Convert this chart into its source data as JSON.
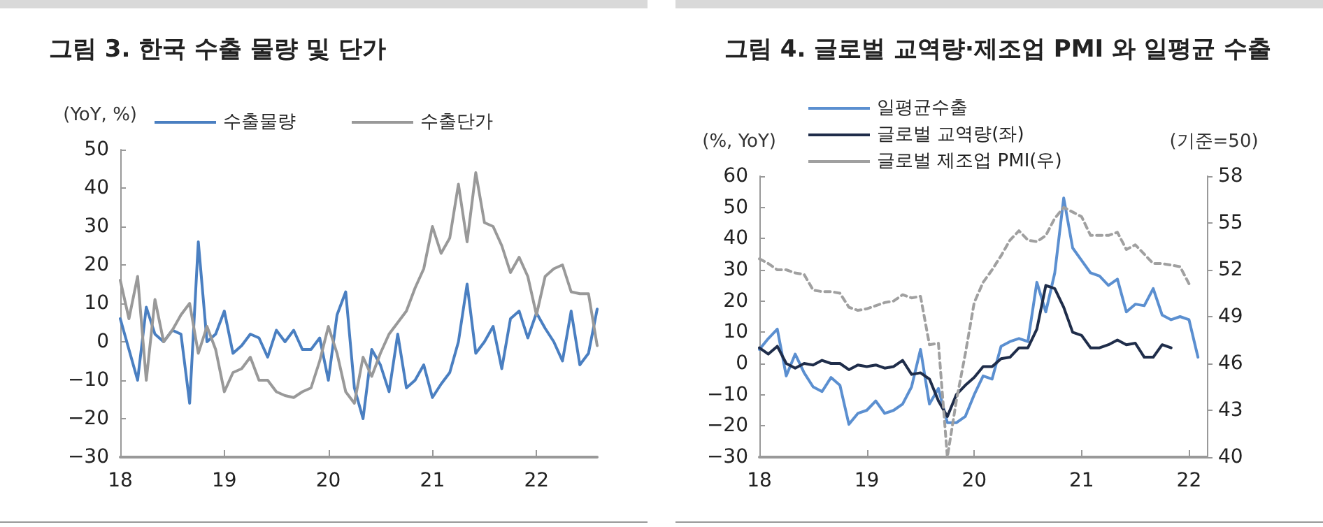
{
  "chart_data": [
    {
      "type": "line",
      "title": "그림 3. 한국 수출 물량 및 단가",
      "ylabel": "(YoY, %)",
      "categories": [
        "18",
        null,
        null,
        null,
        null,
        null,
        null,
        null,
        null,
        null,
        null,
        null,
        "19",
        null,
        null,
        null,
        null,
        null,
        null,
        null,
        null,
        null,
        null,
        null,
        "20",
        null,
        null,
        null,
        null,
        null,
        null,
        null,
        null,
        null,
        null,
        null,
        "21",
        null,
        null,
        null,
        null,
        null,
        null,
        null,
        null,
        null,
        null,
        null,
        "22",
        null,
        null,
        null,
        null,
        null,
        null,
        null
      ],
      "series": [
        {
          "name": "수출물량",
          "color": "#4a7fc1",
          "values": [
            6,
            -2,
            -10,
            9,
            2,
            0,
            3,
            2,
            -16,
            26,
            0,
            2,
            8,
            -3,
            -1,
            2,
            1,
            -4,
            3,
            0,
            3,
            -2,
            -2,
            1,
            -10,
            7,
            13,
            -12,
            -20,
            -2,
            -6,
            -13,
            2,
            -12,
            -10,
            -6,
            -14.5,
            -11,
            -8,
            0,
            15,
            -3,
            0,
            4,
            -7,
            6,
            8,
            1,
            7.5,
            3.5,
            0,
            -5,
            8,
            -6,
            -3,
            8.5
          ]
        },
        {
          "name": "수출단가",
          "color": "#999999",
          "values": [
            16,
            6,
            17,
            -10,
            11,
            0,
            3,
            7,
            10,
            -3,
            4,
            -2,
            -13,
            -8,
            -7,
            -4,
            -10,
            -10,
            -13,
            -14,
            -14.5,
            -13,
            -12,
            -5,
            4,
            -3,
            -13,
            -16,
            -4,
            -9,
            -3,
            2,
            5,
            8,
            14,
            19,
            30,
            23,
            27,
            41,
            26,
            44,
            31,
            30,
            25,
            18,
            22,
            17,
            7,
            17,
            19,
            20,
            13,
            12.5,
            12.5,
            -1
          ]
        }
      ],
      "ylim": [
        -30,
        50
      ],
      "yticks": [
        -30,
        -20,
        -10,
        0,
        10,
        20,
        30,
        40,
        50
      ],
      "legend": "top",
      "grid": false,
      "marker": "none"
    },
    {
      "type": "line",
      "title": "그림 4. 글로벌 교역량·제조업 PMI 와 일평균 수출",
      "ylabel": "(%, YoY)",
      "y2label": "(기준=50)",
      "categories": [
        "18",
        null,
        null,
        null,
        null,
        null,
        null,
        null,
        null,
        null,
        null,
        null,
        "19",
        null,
        null,
        null,
        null,
        null,
        null,
        null,
        null,
        null,
        null,
        null,
        "20",
        null,
        null,
        null,
        null,
        null,
        null,
        null,
        null,
        null,
        null,
        null,
        "21",
        null,
        null,
        null,
        null,
        null,
        null,
        null,
        null,
        null,
        null,
        null,
        "22",
        null,
        null
      ],
      "series": [
        {
          "name": "일평균수출",
          "color": "#5b8fd0",
          "values": [
            4.5,
            8,
            11,
            -4,
            3,
            -3,
            -7.5,
            -9,
            -4.5,
            -7,
            -19.5,
            -16,
            -15,
            -12,
            -16,
            -15,
            -13,
            -7.5,
            4.5,
            -13,
            -8,
            -19,
            -19,
            -17,
            -10,
            -4,
            -5,
            5.5,
            7,
            8,
            7,
            26,
            16.5,
            29,
            53,
            37,
            33,
            29,
            28,
            25,
            27,
            16.5,
            19,
            18.5,
            24,
            15.5,
            14,
            15,
            14,
            2,
            null
          ]
        },
        {
          "name": "글로벌 교역량(좌)",
          "color": "#1f2d4a",
          "values": [
            5,
            3,
            5.5,
            0,
            -1.5,
            0,
            -0.5,
            1,
            0,
            0,
            -2,
            -0.5,
            -1,
            -0.5,
            -1.5,
            -1,
            1,
            -3.5,
            -3,
            -5,
            -12,
            -17,
            -10,
            -7,
            -4.5,
            -1,
            -1,
            1.5,
            2,
            5,
            5,
            11,
            25,
            24,
            18,
            10,
            9,
            5,
            5,
            6,
            7.5,
            6,
            6.5,
            2,
            2,
            6,
            5,
            null,
            null,
            null,
            null
          ]
        },
        {
          "name": "글로벌 제조업 PMI(우)",
          "color": "#a0a0a0",
          "axis": "y2",
          "line_style": "dashed",
          "values": [
            52.7,
            52.4,
            52.0,
            52.0,
            51.8,
            51.7,
            50.7,
            50.6,
            50.6,
            50.5,
            49.6,
            49.4,
            49.5,
            49.7,
            49.9,
            50.0,
            50.4,
            50.2,
            50.3,
            47.2,
            47.3,
            40.0,
            43.6,
            46.6,
            49.9,
            51.2,
            52.0,
            52.9,
            53.9,
            54.5,
            53.9,
            53.8,
            54.2,
            55.3,
            56.0,
            55.7,
            55.4,
            54.2,
            54.2,
            54.2,
            54.4,
            53.3,
            53.6,
            53.0,
            52.4,
            52.4,
            52.3,
            52.2,
            51.1,
            null,
            null
          ]
        }
      ],
      "ylim": [
        -30,
        60
      ],
      "yticks": [
        -30,
        -20,
        -10,
        0,
        10,
        20,
        30,
        40,
        50,
        60
      ],
      "y2lim": [
        40,
        58
      ],
      "y2ticks": [
        40,
        43,
        46,
        49,
        52,
        55,
        58
      ],
      "legend": "top left",
      "grid": false,
      "marker": "none"
    }
  ]
}
